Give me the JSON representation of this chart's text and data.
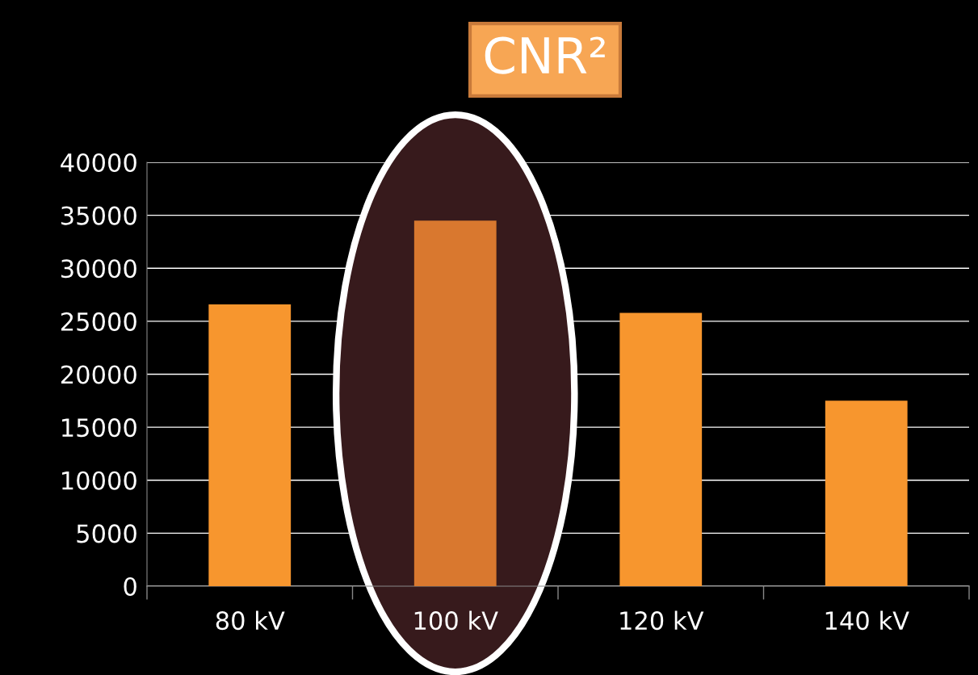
{
  "chart_data": {
    "type": "bar",
    "title": "CNR²",
    "categories": [
      "80 kV",
      "100 kV",
      "120 kV",
      "140 kV"
    ],
    "values": [
      26600,
      34500,
      25800,
      17500
    ],
    "colors": [
      "#f7962e",
      "#d9782f",
      "#f7962e",
      "#f7962e"
    ],
    "ylim": [
      0,
      40000
    ],
    "yticks": [
      0,
      5000,
      10000,
      15000,
      20000,
      25000,
      30000,
      35000,
      40000
    ],
    "grid": "y"
  }
}
